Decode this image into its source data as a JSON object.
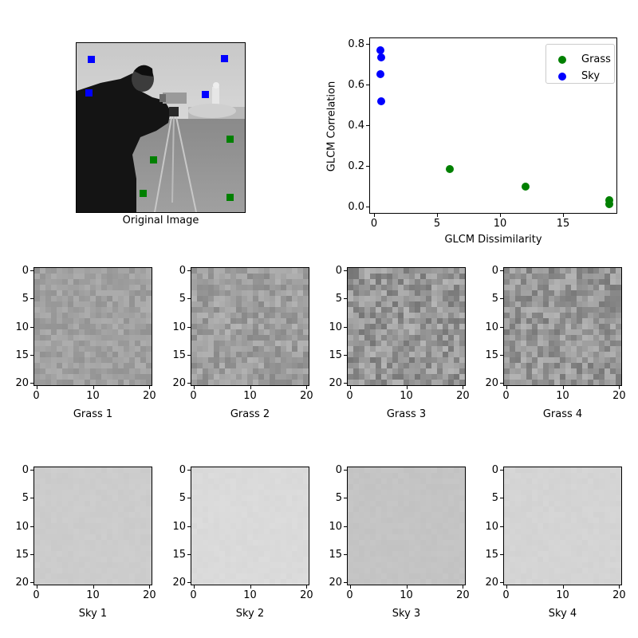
{
  "figure": {
    "original": {
      "label": "Original Image",
      "grass_markers": [
        [
          288,
          174
        ],
        [
          192,
          200
        ],
        [
          179,
          242
        ],
        [
          288,
          247
        ]
      ],
      "sky_markers": [
        [
          114,
          74
        ],
        [
          281,
          73
        ],
        [
          111,
          116
        ],
        [
          257,
          118
        ]
      ],
      "grass_color": "#008000",
      "sky_color": "#0000ff"
    },
    "patches": {
      "grass": [
        {
          "label": "Grass 1",
          "mean": 160,
          "spread": 14
        },
        {
          "label": "Grass 2",
          "mean": 158,
          "spread": 22
        },
        {
          "label": "Grass 3",
          "mean": 150,
          "spread": 32
        },
        {
          "label": "Grass 4",
          "mean": 150,
          "spread": 30
        }
      ],
      "sky": [
        {
          "label": "Sky 1",
          "mean": 204,
          "spread": 2
        },
        {
          "label": "Sky 2",
          "mean": 218,
          "spread": 2
        },
        {
          "label": "Sky 3",
          "mean": 196,
          "spread": 2
        },
        {
          "label": "Sky 4",
          "mean": 212,
          "spread": 2
        }
      ],
      "x_ticks": [
        "0",
        "10",
        "20"
      ],
      "y_ticks": [
        "0",
        "5",
        "10",
        "15",
        "20"
      ]
    }
  },
  "chart_data": [
    {
      "type": "scatter",
      "title": "",
      "xlabel": "GLCM Dissimilarity",
      "ylabel": "GLCM Correlation",
      "xlim": [
        -0.4,
        19.3
      ],
      "ylim": [
        -0.02,
        0.81
      ],
      "x_ticks": [
        "0",
        "5",
        "10",
        "15"
      ],
      "y_ticks": [
        "0.0",
        "0.2",
        "0.4",
        "0.6",
        "0.8"
      ],
      "grid": false,
      "legend_position": "upper right",
      "series": [
        {
          "name": "Grass",
          "color": "#008000",
          "x": [
            6.0,
            12.0,
            18.7,
            18.7
          ],
          "y": [
            0.185,
            0.098,
            0.033,
            0.012
          ]
        },
        {
          "name": "Sky",
          "color": "#0000ff",
          "x": [
            0.5,
            0.55,
            0.5,
            0.6
          ],
          "y": [
            0.768,
            0.733,
            0.651,
            0.517
          ]
        }
      ]
    }
  ]
}
